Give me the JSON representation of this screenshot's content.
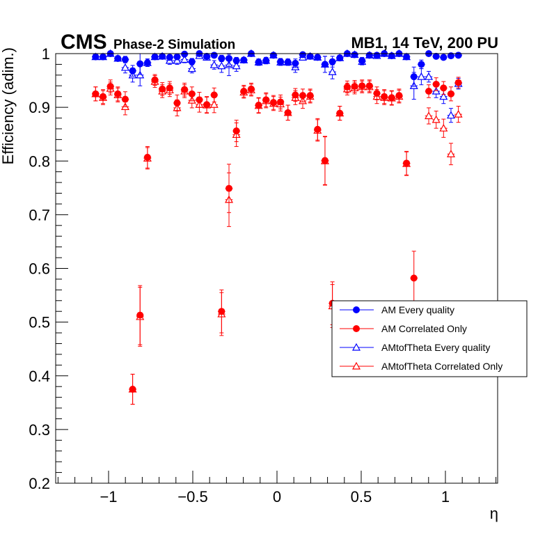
{
  "header": {
    "cms": "CMS",
    "subtitle": "Phase-2 Simulation",
    "right_label": "MB1, 14 TeV, 200 PU"
  },
  "chart_data": {
    "type": "scatter",
    "title": "",
    "xlabel": "η",
    "ylabel": "Efficiency (adim.)",
    "xlim": [
      -1.314,
      1.31
    ],
    "ylim": [
      0.2,
      1.0
    ],
    "x_ticks": [
      -1,
      -0.5,
      0,
      0.5,
      1
    ],
    "x_tick_labels": [
      "−1",
      "−0.5",
      "0",
      "0.5",
      "1"
    ],
    "y_ticks": [
      0.2,
      0.3,
      0.4,
      0.5,
      0.6,
      0.7,
      0.8,
      0.9,
      1.0
    ],
    "y_tick_labels": [
      "0.2",
      "0.3",
      "0.4",
      "0.5",
      "0.6",
      "0.7",
      "0.8",
      "0.9",
      "1"
    ],
    "grid": false,
    "legend_position": "right-middle",
    "bin_half_width": 0.022,
    "x": [
      -1.077,
      -1.033,
      -0.989,
      -0.945,
      -0.901,
      -0.857,
      -0.813,
      -0.769,
      -0.725,
      -0.681,
      -0.637,
      -0.593,
      -0.549,
      -0.505,
      -0.461,
      -0.417,
      -0.373,
      -0.329,
      -0.285,
      -0.241,
      -0.197,
      -0.153,
      -0.109,
      -0.065,
      -0.021,
      0.021,
      0.065,
      0.109,
      0.153,
      0.197,
      0.241,
      0.285,
      0.329,
      0.373,
      0.417,
      0.461,
      0.505,
      0.549,
      0.593,
      0.637,
      0.681,
      0.725,
      0.769,
      0.813,
      0.857,
      0.901,
      0.945,
      0.989,
      1.033,
      1.077
    ],
    "series": [
      {
        "name": "AM Every quality",
        "color": "#0000ff",
        "marker": "filled-circle",
        "err_default": 0.006,
        "values": [
          0.994,
          0.994,
          1.0,
          0.991,
          0.989,
          0.968,
          0.981,
          0.983,
          0.994,
          0.995,
          0.993,
          0.994,
          0.999,
          0.985,
          1.0,
          0.995,
          0.997,
          0.991,
          0.991,
          0.987,
          0.988,
          1.0,
          0.984,
          0.987,
          0.997,
          0.985,
          0.984,
          0.982,
          0.998,
          0.995,
          0.993,
          0.98,
          0.985,
          0.992,
          1.0,
          0.998,
          0.987,
          0.997,
          0.997,
          1.0,
          0.996,
          1.0,
          0.994,
          0.957,
          0.98,
          1.0,
          0.995,
          0.993,
          0.996,
          0.997
        ],
        "errors": [
          0.005,
          0.005,
          0.003,
          0.005,
          0.006,
          0.01,
          0.02,
          0.007,
          0.005,
          0.005,
          0.005,
          0.005,
          0.004,
          0.006,
          0.003,
          0.005,
          0.004,
          0.006,
          0.015,
          0.006,
          0.005,
          0.003,
          0.006,
          0.006,
          0.004,
          0.006,
          0.006,
          0.008,
          0.004,
          0.005,
          0.005,
          0.015,
          0.01,
          0.005,
          0.003,
          0.004,
          0.006,
          0.004,
          0.004,
          0.003,
          0.005,
          0.003,
          0.005,
          0.018,
          0.008,
          0.003,
          0.004,
          0.004,
          0.004,
          0.004
        ]
      },
      {
        "name": "AM Correlated Only",
        "color": "#ff0000",
        "marker": "filled-circle",
        "err_default": 0.013,
        "values": [
          0.925,
          0.92,
          0.939,
          0.925,
          0.915,
          0.375,
          0.513,
          0.807,
          0.951,
          0.934,
          0.936,
          0.908,
          0.933,
          0.925,
          0.914,
          0.905,
          0.923,
          0.52,
          0.749,
          0.856,
          0.93,
          0.934,
          0.904,
          0.914,
          0.909,
          0.91,
          0.89,
          0.923,
          0.922,
          0.922,
          0.859,
          0.801,
          0.535,
          0.889,
          0.938,
          0.939,
          0.94,
          0.94,
          0.926,
          0.92,
          0.918,
          0.922,
          0.796,
          0.582,
          null,
          0.93,
          0.943,
          0.936,
          0.925,
          0.946
        ],
        "errors": [
          0.013,
          0.013,
          0.012,
          0.013,
          0.014,
          0.028,
          0.055,
          0.02,
          0.01,
          0.012,
          0.012,
          0.015,
          0.012,
          0.013,
          0.014,
          0.015,
          0.013,
          0.04,
          0.045,
          0.02,
          0.011,
          0.011,
          0.014,
          0.013,
          0.013,
          0.013,
          0.014,
          0.012,
          0.012,
          0.012,
          0.02,
          0.045,
          0.04,
          0.013,
          0.011,
          0.011,
          0.011,
          0.011,
          0.012,
          0.013,
          0.013,
          0.012,
          0.022,
          0.05,
          0,
          0.012,
          0.012,
          0.012,
          0.013,
          0.01
        ]
      },
      {
        "name": "AMtofTheta Every quality",
        "color": "#0000ff",
        "marker": "open-triangle",
        "err_default": 0.008,
        "values": [
          0.994,
          0.994,
          1.0,
          0.991,
          0.974,
          0.96,
          0.96,
          0.983,
          0.994,
          0.995,
          0.987,
          0.987,
          0.989,
          0.972,
          0.996,
          0.993,
          0.979,
          0.977,
          0.979,
          0.977,
          0.988,
          1.0,
          0.984,
          0.987,
          0.997,
          0.984,
          0.984,
          0.975,
          0.993,
          0.995,
          0.993,
          0.98,
          0.966,
          0.992,
          1.0,
          0.998,
          0.985,
          0.997,
          0.996,
          1.0,
          0.996,
          1.0,
          0.994,
          0.94,
          0.957,
          0.957,
          0.93,
          0.92,
          0.885,
          0.944
        ],
        "errors": [
          0.005,
          0.005,
          0.003,
          0.005,
          0.01,
          0.013,
          0.02,
          0.007,
          0.005,
          0.005,
          0.007,
          0.007,
          0.006,
          0.008,
          0.004,
          0.005,
          0.008,
          0.012,
          0.02,
          0.01,
          0.005,
          0.003,
          0.006,
          0.006,
          0.004,
          0.006,
          0.006,
          0.01,
          0.005,
          0.005,
          0.005,
          0.015,
          0.013,
          0.005,
          0.003,
          0.004,
          0.006,
          0.004,
          0.004,
          0.003,
          0.005,
          0.003,
          0.005,
          0.025,
          0.015,
          0.01,
          0.012,
          0.013,
          0.013,
          0.01
        ]
      },
      {
        "name": "AMtofTheta Correlated Only",
        "color": "#ff0000",
        "marker": "open-triangle",
        "err_default": 0.013,
        "values": [
          0.925,
          0.918,
          0.935,
          0.923,
          0.901,
          0.375,
          0.51,
          0.805,
          0.948,
          0.93,
          0.932,
          0.899,
          0.93,
          0.913,
          0.905,
          0.904,
          0.905,
          0.515,
          0.728,
          0.849,
          0.928,
          0.932,
          0.903,
          0.912,
          0.907,
          0.906,
          0.89,
          0.918,
          0.912,
          0.92,
          0.857,
          0.8,
          0.53,
          0.889,
          0.934,
          0.936,
          0.938,
          0.938,
          0.92,
          0.918,
          0.917,
          0.92,
          0.795,
          null,
          null,
          0.884,
          0.877,
          0.861,
          0.813,
          0.887
        ],
        "errors": [
          0.013,
          0.013,
          0.012,
          0.013,
          0.015,
          0.028,
          0.055,
          0.02,
          0.011,
          0.012,
          0.012,
          0.015,
          0.012,
          0.014,
          0.014,
          0.015,
          0.015,
          0.04,
          0.05,
          0.022,
          0.011,
          0.011,
          0.014,
          0.013,
          0.013,
          0.013,
          0.014,
          0.013,
          0.014,
          0.012,
          0.02,
          0.045,
          0.04,
          0.013,
          0.011,
          0.011,
          0.011,
          0.011,
          0.013,
          0.013,
          0.013,
          0.012,
          0.022,
          0,
          0,
          0.015,
          0.016,
          0.017,
          0.02,
          0.015
        ]
      }
    ]
  }
}
